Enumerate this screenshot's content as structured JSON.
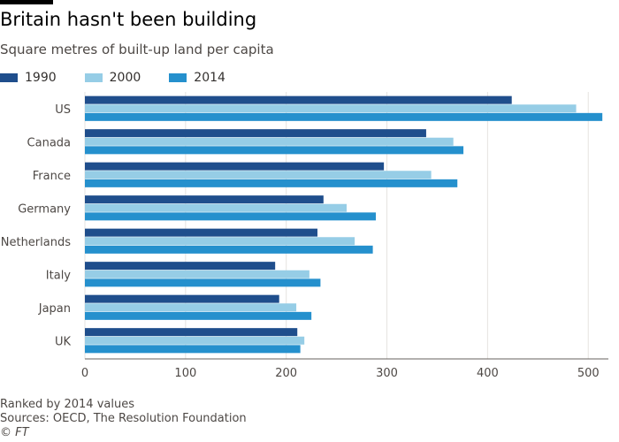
{
  "header": {
    "title": "Britain hasn't been building",
    "subtitle": "Square metres of built-up land per capita"
  },
  "footer": {
    "note": "Ranked by 2014 values",
    "sources": "Sources: OECD, The Resolution Foundation",
    "credit": "© FT"
  },
  "colors": {
    "series_1990": "#1f4e8c",
    "series_2000": "#96cde6",
    "series_2014": "#2590cd",
    "grid": "#e6e3e0",
    "text": "#4d4845"
  },
  "chart_data": {
    "type": "bar",
    "orientation": "horizontal",
    "title": "Britain hasn't been building",
    "subtitle": "Square metres of built-up land per capita",
    "xlabel": "",
    "ylabel": "",
    "xlim": [
      0,
      520
    ],
    "xticks": [
      0,
      100,
      200,
      300,
      400,
      500
    ],
    "grid": true,
    "legend_position": "top-left",
    "categories": [
      "US",
      "Canada",
      "France",
      "Germany",
      "Netherlands",
      "Italy",
      "Japan",
      "UK"
    ],
    "series": [
      {
        "name": "1990",
        "color": "#1f4e8c",
        "values": [
          424,
          339,
          297,
          237,
          231,
          189,
          193,
          211
        ]
      },
      {
        "name": "2000",
        "color": "#96cde6",
        "values": [
          488,
          366,
          344,
          260,
          268,
          223,
          210,
          218
        ]
      },
      {
        "name": "2014",
        "color": "#2590cd",
        "values": [
          514,
          376,
          370,
          289,
          286,
          234,
          225,
          214
        ]
      }
    ]
  }
}
